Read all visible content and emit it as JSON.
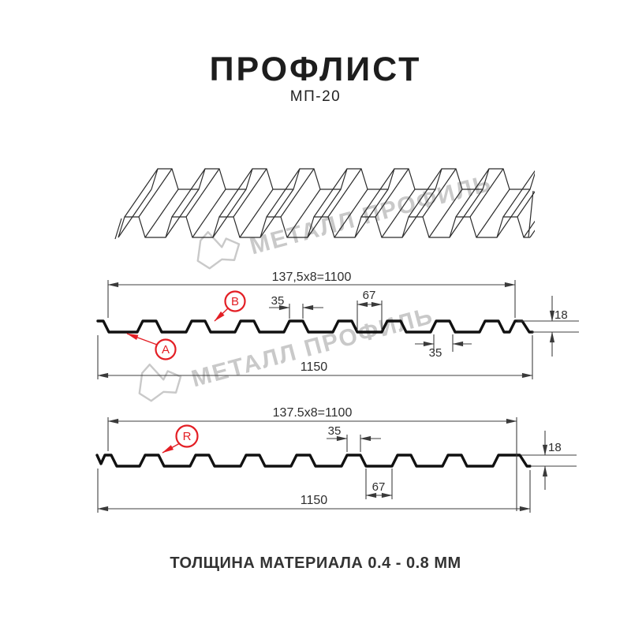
{
  "header": {
    "title": "ПРОФЛИСТ",
    "subtitle": "МП-20"
  },
  "watermark": {
    "text": "МЕТАЛЛ ПРОФИЛЬ"
  },
  "diagram_top": {
    "dim_width_formula": "137,5x8=1100",
    "dim_crest_top": "35",
    "dim_valley": "67",
    "dim_height": "18",
    "dim_crest_bottom": "35",
    "dim_total_width": "1150",
    "point_a": "A",
    "point_b": "B"
  },
  "diagram_bottom": {
    "dim_width_formula": "137.5x8=1100",
    "dim_crest_top": "35",
    "dim_valley": "67",
    "dim_height": "18",
    "dim_total_width": "1150",
    "point_r": "R"
  },
  "footer": {
    "text": "ТОЛЩИНА МАТЕРИАЛА 0.4 - 0.8 ММ"
  },
  "colors": {
    "accent_red": "#e31e24",
    "line": "#1f1f1f",
    "watermark": "#c9c9c9"
  }
}
